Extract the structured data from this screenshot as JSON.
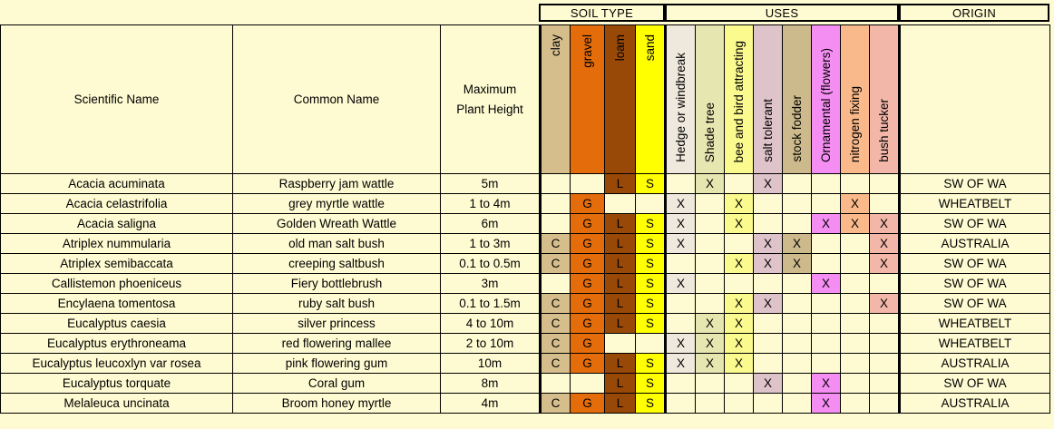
{
  "groups": {
    "soil": "SOIL TYPE",
    "uses": "USES",
    "origin": "ORIGIN"
  },
  "headers": {
    "scientific": "Scientific Name",
    "common": "Common Name",
    "height_line1": "Maximum",
    "height_line2": "Plant Height",
    "soil": [
      "clay",
      "gravel",
      "loam",
      "sand"
    ],
    "uses": [
      "Hedge or windbreak",
      "Shade tree",
      "bee and bird attracting",
      "salt tolerant",
      "stock fodder",
      "Ornamental (flowers)",
      "nitrogen fixing",
      "bush tucker"
    ]
  },
  "colors": {
    "background": "#fefbd2",
    "soil": [
      "#d6be8c",
      "#e46c0a",
      "#984807",
      "#ffff00"
    ],
    "uses": [
      "#eee9dc",
      "#e6e6b0",
      "#fbfa8e",
      "#dfc3ca",
      "#cdba8c",
      "#f58ef2",
      "#fab98a",
      "#f2b7a9"
    ]
  },
  "rows": [
    {
      "scientific": "Acacia acuminata",
      "common": "Raspberry jam wattle",
      "height": "5m",
      "soil": [
        "",
        "",
        "L",
        "S"
      ],
      "uses": [
        "",
        "X",
        "",
        "X",
        "",
        "",
        "",
        ""
      ],
      "origin": "SW OF WA"
    },
    {
      "scientific": "Acacia celastrifolia",
      "common": "grey myrtle wattle",
      "height": "1 to 4m",
      "soil": [
        "",
        "G",
        "",
        ""
      ],
      "uses": [
        "X",
        "",
        "X",
        "",
        "",
        "",
        "X",
        ""
      ],
      "origin": "WHEATBELT"
    },
    {
      "scientific": "Acacia saligna",
      "common": "Golden Wreath Wattle",
      "height": "6m",
      "soil": [
        "",
        "G",
        "L",
        "S"
      ],
      "uses": [
        "X",
        "",
        "X",
        "",
        "",
        "X",
        "X",
        "X"
      ],
      "origin": "SW OF WA"
    },
    {
      "scientific": "Atriplex nummularia",
      "common": "old man salt bush",
      "height": "1 to 3m",
      "soil": [
        "C",
        "G",
        "L",
        "S"
      ],
      "uses": [
        "X",
        "",
        "",
        "X",
        "X",
        "",
        "",
        "X"
      ],
      "origin": "AUSTRALIA"
    },
    {
      "scientific": "Atriplex semibaccata",
      "common": "creeping saltbush",
      "height": "0.1 to 0.5m",
      "soil": [
        "C",
        "G",
        "L",
        "S"
      ],
      "uses": [
        "",
        "",
        "X",
        "X",
        "X",
        "",
        "",
        "X"
      ],
      "origin": "SW OF WA"
    },
    {
      "scientific": "Callistemon phoeniceus",
      "common": "Fiery bottlebrush",
      "height": "3m",
      "soil": [
        "",
        "G",
        "L",
        "S"
      ],
      "uses": [
        "X",
        "",
        "",
        "",
        "",
        "X",
        "",
        ""
      ],
      "origin": "SW OF WA"
    },
    {
      "scientific": "Encylaena tomentosa",
      "common": "ruby salt bush",
      "height": "0.1 to 1.5m",
      "soil": [
        "C",
        "G",
        "L",
        "S"
      ],
      "uses": [
        "",
        "",
        "X",
        "X",
        "",
        "",
        "",
        "X"
      ],
      "origin": "SW OF WA"
    },
    {
      "scientific": "Eucalyptus caesia",
      "common": "silver princess",
      "height": "4 to 10m",
      "soil": [
        "C",
        "G",
        "L",
        "S"
      ],
      "uses": [
        "",
        "X",
        "X",
        "",
        "",
        "",
        "",
        ""
      ],
      "origin": "WHEATBELT"
    },
    {
      "scientific": "Eucalyptus erythroneama",
      "common": "red flowering mallee",
      "height": "2 to 10m",
      "soil": [
        "C",
        "G",
        "",
        ""
      ],
      "uses": [
        "X",
        "X",
        "X",
        "",
        "",
        "",
        "",
        ""
      ],
      "origin": "WHEATBELT"
    },
    {
      "scientific": "Eucalyptus leucoxlyn var rosea",
      "common": "pink flowering gum",
      "height": "10m",
      "soil": [
        "C",
        "G",
        "L",
        "S"
      ],
      "uses": [
        "X",
        "X",
        "X",
        "",
        "",
        "",
        "",
        ""
      ],
      "origin": "AUSTRALIA"
    },
    {
      "scientific": "Eucalyptus torquate",
      "common": "Coral gum",
      "height": "8m",
      "soil": [
        "",
        "",
        "L",
        "S"
      ],
      "uses": [
        "",
        "",
        "",
        "X",
        "",
        "X",
        "",
        ""
      ],
      "origin": "SW OF WA"
    },
    {
      "scientific": "Melaleuca uncinata",
      "common": "Broom honey myrtle",
      "height": "4m",
      "soil": [
        "C",
        "G",
        "L",
        "S"
      ],
      "uses": [
        "",
        "",
        "",
        "",
        "",
        "X",
        "",
        ""
      ],
      "origin": "AUSTRALIA"
    }
  ]
}
